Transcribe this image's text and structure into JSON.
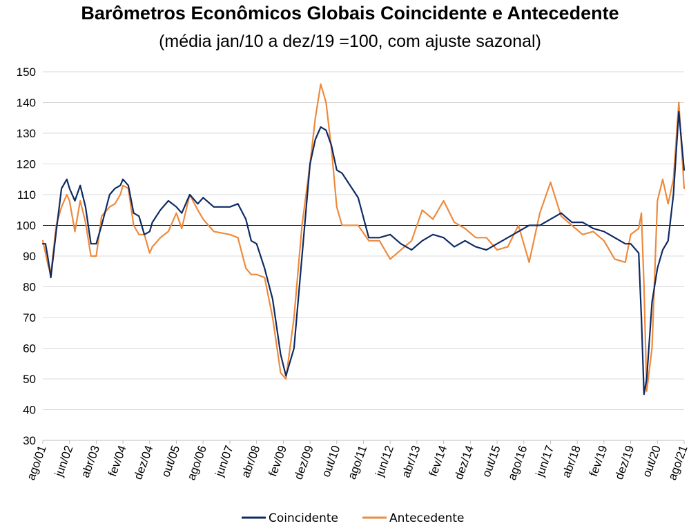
{
  "chart_data": {
    "type": "line",
    "title": "Barômetros Econômicos Globais Coincidente e Antecedente",
    "subtitle": "(média jan/10 a dez/19 =100, com ajuste sazonal)",
    "xlabel": "",
    "ylabel": "",
    "ylim": [
      30,
      150
    ],
    "yticks": [
      30,
      40,
      50,
      60,
      70,
      80,
      90,
      100,
      110,
      120,
      130,
      140,
      150
    ],
    "reference_line": 100,
    "grid": "horizontal",
    "legend_position": "bottom",
    "x_tick_labels": [
      "ago/01",
      "jun/02",
      "abr/03",
      "fev/04",
      "dez/04",
      "out/05",
      "ago/06",
      "jun/07",
      "abr/08",
      "fev/09",
      "dez/09",
      "out/10",
      "ago/11",
      "jun/12",
      "abr/13",
      "fev/14",
      "dez/14",
      "out/15",
      "ago/16",
      "jun/17",
      "abr/18",
      "fev/19",
      "dez/19",
      "out/20",
      "ago/21"
    ],
    "x_start": "ago/01",
    "x_end": "ago/21",
    "colors": {
      "Coincidente": "#0e2a63",
      "Antecedente": "#ee8a3c"
    },
    "series": [
      {
        "name": "Coincidente",
        "x": [
          "ago/01",
          "set/01",
          "out/01",
          "nov/01",
          "jan/02",
          "mar/02",
          "mai/02",
          "jun/02",
          "ago/02",
          "out/02",
          "dez/02",
          "fev/03",
          "abr/03",
          "jun/03",
          "set/03",
          "nov/03",
          "jan/04",
          "fev/04",
          "abr/04",
          "jun/04",
          "ago/04",
          "out/04",
          "dez/04",
          "jan/05",
          "abr/05",
          "jul/05",
          "out/05",
          "dez/05",
          "mar/06",
          "jun/06",
          "ago/06",
          "dez/06",
          "jun/07",
          "set/07",
          "dez/07",
          "fev/08",
          "abr/08",
          "jul/08",
          "out/08",
          "jan/09",
          "mar/09",
          "jun/09",
          "set/09",
          "dez/09",
          "fev/10",
          "abr/10",
          "jun/10",
          "ago/10",
          "out/10",
          "dez/10",
          "jun/11",
          "out/11",
          "fev/12",
          "jun/12",
          "out/12",
          "fev/13",
          "jun/13",
          "out/13",
          "fev/14",
          "jun/14",
          "out/14",
          "fev/15",
          "jun/15",
          "out/15",
          "fev/16",
          "jun/16",
          "out/16",
          "fev/17",
          "jun/17",
          "out/17",
          "fev/18",
          "jun/18",
          "out/18",
          "fev/19",
          "jun/19",
          "out/19",
          "dez/19",
          "mar/20",
          "abr/20",
          "mai/20",
          "jun/20",
          "ago/20",
          "out/20",
          "dez/20",
          "fev/21",
          "abr/21",
          "jun/21",
          "ago/21"
        ],
        "values": [
          94,
          94,
          89,
          83,
          98,
          112,
          115,
          112,
          108,
          113,
          106,
          94,
          94,
          100,
          110,
          112,
          113,
          115,
          113,
          104,
          103,
          97,
          98,
          101,
          105,
          108,
          106,
          104,
          110,
          107,
          109,
          106,
          106,
          107,
          102,
          95,
          94,
          86,
          76,
          58,
          51,
          60,
          90,
          120,
          128,
          132,
          131,
          126,
          118,
          117,
          109,
          96,
          96,
          97,
          94,
          92,
          95,
          97,
          96,
          93,
          95,
          93,
          92,
          94,
          96,
          98,
          100,
          100,
          102,
          104,
          101,
          101,
          99,
          98,
          96,
          94,
          94,
          91,
          70,
          45,
          50,
          75,
          86,
          92,
          95,
          110,
          137,
          118
        ]
      },
      {
        "name": "Antecedente",
        "x": [
          "ago/01",
          "set/01",
          "out/01",
          "nov/01",
          "jan/02",
          "mar/02",
          "mai/02",
          "jun/02",
          "ago/02",
          "out/02",
          "dez/02",
          "fev/03",
          "abr/03",
          "jun/03",
          "set/03",
          "nov/03",
          "jan/04",
          "fev/04",
          "abr/04",
          "jun/04",
          "ago/04",
          "out/04",
          "dez/04",
          "jan/05",
          "abr/05",
          "jul/05",
          "out/05",
          "dez/05",
          "mar/06",
          "jun/06",
          "ago/06",
          "dez/06",
          "jun/07",
          "set/07",
          "dez/07",
          "fev/08",
          "abr/08",
          "jul/08",
          "out/08",
          "jan/09",
          "mar/09",
          "jun/09",
          "set/09",
          "dez/09",
          "fev/10",
          "abr/10",
          "jun/10",
          "ago/10",
          "out/10",
          "dez/10",
          "jun/11",
          "out/11",
          "fev/12",
          "jun/12",
          "out/12",
          "fev/13",
          "jun/13",
          "out/13",
          "fev/14",
          "jun/14",
          "out/14",
          "fev/15",
          "jun/15",
          "out/15",
          "fev/16",
          "jun/16",
          "out/16",
          "fev/17",
          "jun/17",
          "out/17",
          "fev/18",
          "jun/18",
          "out/18",
          "fev/19",
          "jun/19",
          "out/19",
          "dez/19",
          "mar/20",
          "abr/20",
          "mai/20",
          "jun/20",
          "ago/20",
          "out/20",
          "dez/20",
          "fev/21",
          "abr/21",
          "jun/21",
          "ago/21"
        ],
        "values": [
          95,
          91,
          87,
          84,
          100,
          106,
          110,
          108,
          98,
          108,
          101,
          90,
          90,
          103,
          106,
          107,
          110,
          113,
          112,
          100,
          97,
          97,
          91,
          93,
          96,
          98,
          104,
          99,
          110,
          105,
          102,
          98,
          97,
          96,
          86,
          84,
          84,
          83,
          70,
          52,
          50,
          70,
          100,
          120,
          135,
          146,
          140,
          125,
          106,
          100,
          100,
          95,
          95,
          89,
          92,
          95,
          105,
          102,
          108,
          101,
          99,
          96,
          96,
          92,
          93,
          100,
          88,
          104,
          114,
          103,
          100,
          97,
          98,
          95,
          89,
          88,
          97,
          99,
          104,
          80,
          46,
          60,
          108,
          115,
          107,
          115,
          140,
          112
        ]
      }
    ]
  },
  "legend": {
    "coincidente": "Coincidente",
    "antecedente": "Antecedente"
  }
}
